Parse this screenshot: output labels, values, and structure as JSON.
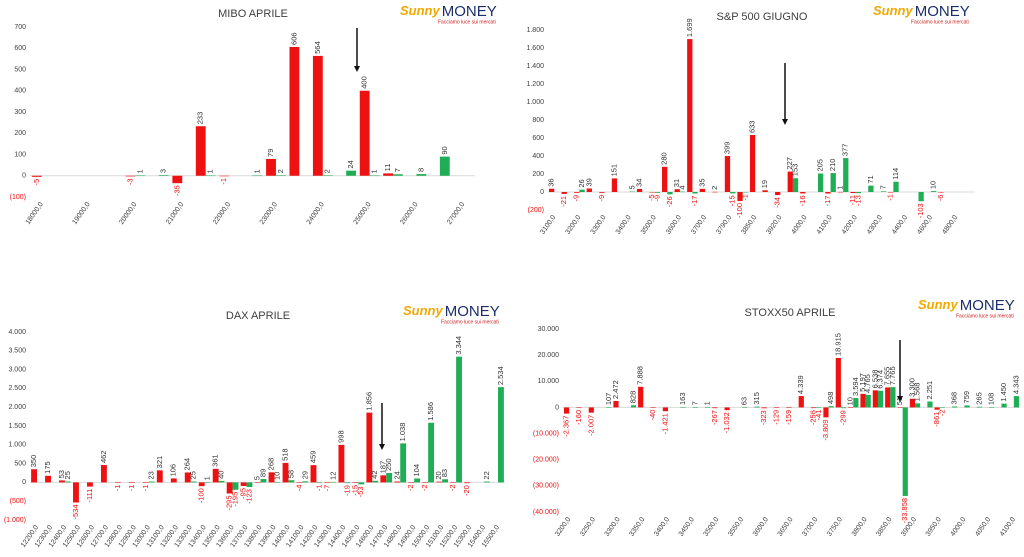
{
  "chart_data": [
    {
      "type": "bar",
      "title": "MIBO APRILE",
      "logo": [
        "Sunny",
        "MONEY"
      ],
      "tagline": "Facciamo luce sui mercati",
      "categories": [
        "18000,0",
        null,
        "19000,0",
        null,
        "20000,0",
        null,
        "21000,0",
        null,
        "22000,0",
        null,
        "23000,0",
        null,
        "24000,0",
        null,
        "25000,0",
        null,
        "26000,0",
        null,
        "27000,0"
      ],
      "series": [
        {
          "color": "#ee1111",
          "values": [
            -5,
            null,
            null,
            null,
            -3,
            null,
            -35,
            233,
            -1,
            null,
            79,
            606,
            564,
            null,
            400,
            11,
            null,
            null,
            null
          ]
        },
        {
          "color": "#1fae55",
          "values": [
            null,
            null,
            null,
            null,
            1,
            3,
            null,
            1,
            null,
            1,
            2,
            null,
            2,
            24,
            1,
            7,
            8,
            90,
            null
          ]
        }
      ],
      "ylim": [
        -100,
        700
      ],
      "yticks": [
        {
          "value": -100,
          "label": "(100)"
        },
        0,
        100,
        200,
        300,
        400,
        500,
        600,
        700
      ],
      "grid": false
    },
    {
      "type": "bar",
      "title": "S&P 500 GIUGNO",
      "logo": [
        "Sunny",
        "MONEY"
      ],
      "tagline": "Facciamo luce sui mercati",
      "categories": [
        "3100,0",
        null,
        "3200,0",
        null,
        "3300,0",
        null,
        "3400,0",
        null,
        "3500,0",
        null,
        "3600,0",
        null,
        "3700,0",
        null,
        "3790,0",
        null,
        "3850,0",
        null,
        "3920,0",
        null,
        "4000,0",
        null,
        "4100,0",
        null,
        "4200,0",
        null,
        "4300,0",
        null,
        "4400,0",
        null,
        "4600,0",
        null,
        "4800,0",
        null
      ],
      "series": [
        {
          "color": "#ee1111",
          "values": [
            36,
            -21,
            -9,
            39,
            -9,
            151,
            null,
            34,
            -5,
            280,
            31,
            1699,
            35,
            2,
            399,
            -100,
            633,
            19,
            -34,
            227,
            -16,
            null,
            -17,
            1,
            -11,
            null,
            null,
            -1,
            null,
            null,
            null,
            -6,
            null,
            null
          ],
          "value_labels": [
            "36",
            "-21",
            "-9",
            "39",
            "-9",
            "151",
            null,
            "34",
            "-5",
            "280",
            "31",
            "1.699",
            "35",
            "2",
            "399",
            "-100",
            "633",
            "19",
            "-34",
            "227",
            "-16",
            null,
            "-17",
            "1",
            "-11",
            null,
            null,
            "-1",
            null,
            null,
            null,
            "-6",
            null,
            null
          ]
        },
        {
          "color": "#1fae55",
          "values": [
            null,
            null,
            26,
            null,
            null,
            null,
            5,
            null,
            -9,
            -26,
            4,
            -17,
            null,
            null,
            -15,
            -1,
            null,
            null,
            null,
            153,
            null,
            205,
            210,
            377,
            -13,
            71,
            7,
            114,
            null,
            -103,
            10,
            null,
            null,
            null
          ]
        }
      ],
      "ylim": [
        -200,
        1800
      ],
      "yticks": [
        {
          "value": -200,
          "label": "(200)"
        },
        0,
        200,
        400,
        600,
        800,
        {
          "value": 1000,
          "label": "1.000"
        },
        {
          "value": 1200,
          "label": "1.200"
        },
        {
          "value": 1400,
          "label": "1.400"
        },
        {
          "value": 1600,
          "label": "1.600"
        },
        {
          "value": 1800,
          "label": "1.800"
        }
      ],
      "grid": false
    },
    {
      "type": "bar",
      "title": "DAX APRILE",
      "logo": [
        "Sunny",
        "MONEY"
      ],
      "tagline": "Facciamo luce sui mercati",
      "categories": [
        "12200,0",
        "12300,0",
        "12400,0",
        "12500,0",
        "12600,0",
        "12700,0",
        "12800,0",
        "12900,0",
        "13000,0",
        "13100,0",
        "13200,0",
        "13300,0",
        "13400,0",
        "13500,0",
        "13600,0",
        "13700,0",
        "13800,0",
        "13900,0",
        "14000,0",
        "14100,0",
        "14200,0",
        "14300,0",
        "14400,0",
        "14500,0",
        "14600,0",
        "14700,0",
        "14800,0",
        "14900,0",
        "15000,0",
        "15100,0",
        "15200,0",
        "15300,0",
        "15400,0",
        "15500,0"
      ],
      "series": [
        {
          "color": "#ee1111",
          "values": [
            350,
            175,
            53,
            -534,
            -111,
            462,
            -1,
            -1,
            -1,
            321,
            106,
            264,
            -100,
            361,
            -295,
            -95,
            5,
            268,
            518,
            -4,
            459,
            -7,
            998,
            -15,
            1856,
            187,
            24,
            -2,
            -2,
            20,
            -2,
            -20,
            null,
            null
          ],
          "value_labels": [
            "350",
            "175",
            "53",
            "-534",
            "-111",
            "462",
            "-1",
            "-1",
            "-1",
            "321",
            "106",
            "264",
            "-100",
            "361",
            "-295",
            "-95",
            "5",
            "268",
            "518",
            "-4",
            "459",
            "-7",
            "998",
            "-15",
            "1.856",
            "187",
            "24",
            "-2",
            "-2",
            "20",
            "-2",
            "-20",
            null,
            null
          ]
        },
        {
          "color": "#1fae55",
          "values": [
            null,
            null,
            25,
            null,
            null,
            null,
            null,
            null,
            23,
            null,
            null,
            25,
            1,
            40,
            -195,
            -123,
            89,
            10,
            58,
            29,
            -1,
            12,
            -19,
            -53,
            42,
            250,
            1038,
            104,
            1586,
            83,
            3344,
            null,
            22,
            2534
          ],
          "value_labels": [
            null,
            null,
            "25",
            null,
            null,
            null,
            null,
            null,
            "23",
            null,
            null,
            "25",
            "1",
            "40",
            "-195",
            "-123",
            "89",
            "10",
            "58",
            "29",
            "-1",
            "12",
            "-19",
            "-53",
            "42",
            "250",
            "1.038",
            "104",
            "1.586",
            "83",
            "3.344",
            null,
            "22",
            "2.534"
          ]
        }
      ],
      "ylim": [
        -1000,
        4000
      ],
      "yticks": [
        {
          "value": -1000,
          "label": "(1.000)"
        },
        {
          "value": -500,
          "label": "(500)"
        },
        0,
        500,
        {
          "value": 1000,
          "label": "1.000"
        },
        {
          "value": 1500,
          "label": "1.500"
        },
        {
          "value": 2000,
          "label": "2.000"
        },
        {
          "value": 2500,
          "label": "2.500"
        },
        {
          "value": 3000,
          "label": "3.000"
        },
        {
          "value": 3500,
          "label": "3.500"
        },
        {
          "value": 4000,
          "label": "4.000"
        }
      ],
      "grid": false
    },
    {
      "type": "bar",
      "title": "STOXX50 APRILE",
      "logo": [
        "Sunny",
        "MONEY"
      ],
      "tagline": "Facciamo luce sui mercati",
      "categories": [
        "3200,0",
        null,
        "3250,0",
        null,
        "3300,0",
        null,
        "3350,0",
        null,
        "3400,0",
        null,
        "3450,0",
        null,
        "3500,0",
        null,
        "3550,0",
        null,
        "3600,0",
        null,
        "3650,0",
        null,
        "3700,0",
        null,
        "3750,0",
        null,
        "3800,0",
        null,
        "3850,0",
        null,
        "3900,0",
        null,
        "3950,0",
        null,
        "4000,0",
        null,
        "4050,0",
        null,
        "4100,0"
      ],
      "series": [
        {
          "color": "#ee1111",
          "values": [
            -2367,
            -160,
            -2007,
            null,
            2472,
            null,
            7888,
            -40,
            -1421,
            null,
            null,
            null,
            -267,
            -1032,
            null,
            null,
            -323,
            -129,
            -159,
            4339,
            -256,
            -3809,
            18915,
            10,
            5197,
            6538,
            7655,
            51,
            3300,
            null,
            -861,
            null,
            null,
            null,
            null,
            null,
            null
          ],
          "value_labels": [
            "-2.367",
            "-160",
            "-2.007",
            null,
            "2.472",
            null,
            "7.888",
            "-40",
            "-1.421",
            null,
            null,
            null,
            "-267",
            "-1.032",
            null,
            null,
            "-323",
            "-129",
            "-159",
            "4.339",
            "-256",
            "-3.809",
            "18.915",
            "10",
            "5.197",
            "6.538",
            "7.655",
            "51",
            "3.300",
            null,
            "-861",
            null,
            null,
            null,
            null,
            null,
            null
          ]
        },
        {
          "color": "#1fae55",
          "values": [
            null,
            null,
            null,
            107,
            null,
            828,
            null,
            null,
            null,
            163,
            7,
            1,
            null,
            null,
            63,
            315,
            null,
            null,
            null,
            null,
            -41,
            498,
            -299,
            3594,
            4765,
            6374,
            7765,
            -33858,
            1568,
            2251,
            -2,
            368,
            759,
            265,
            108,
            1450,
            4343
          ],
          "value_labels": [
            null,
            null,
            null,
            "107",
            null,
            "828",
            null,
            null,
            null,
            "163",
            "7",
            "1",
            null,
            null,
            "63",
            "315",
            null,
            null,
            null,
            null,
            "-41",
            "498",
            "-299",
            "3.594",
            "4.765",
            "6.374",
            "7.765",
            "-33.858",
            "1.568",
            "2.251",
            "-2",
            "368",
            "759",
            "265",
            "108",
            "1.450",
            "4.343"
          ]
        }
      ],
      "ylim": [
        -40000,
        30000
      ],
      "yticks": [
        {
          "value": -40000,
          "label": "(40.000)"
        },
        {
          "value": -30000,
          "label": "(30.000)"
        },
        {
          "value": -20000,
          "label": "(20.000)"
        },
        {
          "value": -10000,
          "label": "(10.000)"
        },
        0,
        {
          "value": 10000,
          "label": "10.000"
        },
        {
          "value": 20000,
          "label": "20.000"
        },
        {
          "value": 30000,
          "label": "30.000"
        }
      ],
      "grid": false
    }
  ]
}
